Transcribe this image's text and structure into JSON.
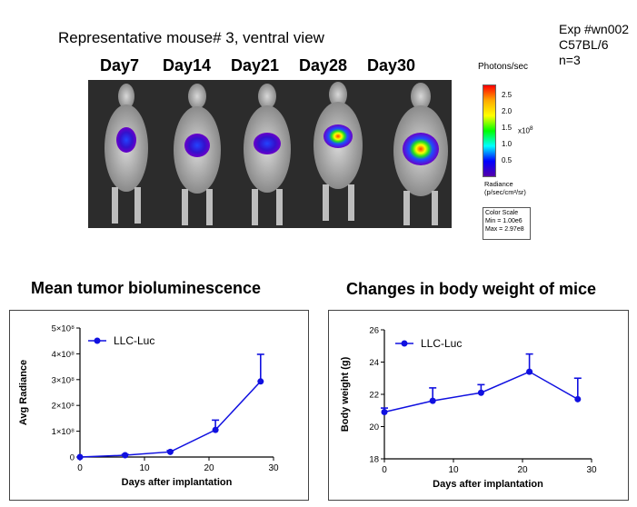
{
  "header": {
    "subtitle": "Representative  mouse# 3,  ventral view",
    "exp_lines": [
      "Exp #wn002",
      "C57BL/6",
      "n=3"
    ],
    "days": [
      "Day7",
      "Day14",
      "Day21",
      "Day28",
      "Day30"
    ]
  },
  "colorbar": {
    "title": "Photons/sec",
    "ticks": [
      "2.5",
      "2.0",
      "1.5",
      "1.0",
      "0.5"
    ],
    "multiplier": "x10",
    "multiplier_exp": "8",
    "radiance_label": "Radiance",
    "radiance_units": "(p/sec/cm²/sr)",
    "scale_title": "Color Scale",
    "min": "Min = 1.00e6",
    "max": "Max = 2.97e8",
    "colors": [
      "#ff0000",
      "#ffaa00",
      "#ffff00",
      "#00ff00",
      "#00ffff",
      "#0000ff",
      "#5500aa"
    ]
  },
  "chart_data": [
    {
      "type": "line",
      "title": "Mean tumor bioluminescence",
      "xlabel": "Days after implantation",
      "ylabel": "Avg Radiance",
      "xlim": [
        0,
        30
      ],
      "ylim": [
        0,
        500000000
      ],
      "xticks": [
        "0",
        "10",
        "20",
        "30"
      ],
      "yticks": [
        "0",
        "1×10⁸",
        "2×10⁸",
        "3×10⁸",
        "4×10⁸",
        "5×10⁸"
      ],
      "grid": false,
      "legend_position": "top-left",
      "series": [
        {
          "name": "LLC-Luc",
          "color": "#1010e0",
          "x": [
            0,
            7,
            14,
            21,
            28
          ],
          "y": [
            0,
            7000000,
            20000000,
            105000000,
            293000000
          ],
          "err_upper": [
            0,
            3000000,
            5000000,
            38000000,
            105000000
          ]
        }
      ]
    },
    {
      "type": "line",
      "title": "Changes in body weight of mice",
      "xlabel": "Days after implantation",
      "ylabel": "Body weight (g)",
      "xlim": [
        0,
        30
      ],
      "ylim": [
        18,
        26
      ],
      "xticks": [
        "0",
        "10",
        "20",
        "30"
      ],
      "yticks": [
        "18",
        "20",
        "22",
        "24",
        "26"
      ],
      "grid": false,
      "legend_position": "top-left",
      "series": [
        {
          "name": "LLC-Luc",
          "color": "#1010e0",
          "x": [
            0,
            7,
            14,
            21,
            28
          ],
          "y": [
            20.9,
            21.6,
            22.1,
            23.4,
            21.7
          ],
          "err_upper": [
            0.25,
            0.8,
            0.5,
            1.1,
            1.3
          ]
        }
      ]
    }
  ]
}
